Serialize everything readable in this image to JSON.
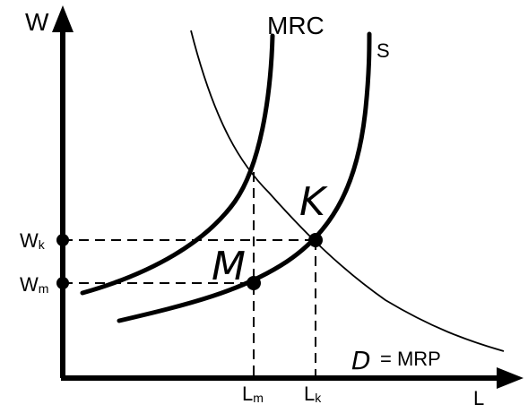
{
  "axes": {
    "y_label": "W",
    "x_label": "L"
  },
  "curves": {
    "mrc_label": "MRC",
    "supply_label": "S",
    "demand_label": "= MRP",
    "demand_symbol": "D"
  },
  "points": {
    "m_label": "M",
    "k_label": "K"
  },
  "ticks": {
    "wk": {
      "main": "W",
      "sub": "k"
    },
    "wm": {
      "main": "W",
      "sub": "m"
    },
    "lm": {
      "main": "L",
      "sub": "m"
    },
    "lk": {
      "main": "L",
      "sub": "k"
    }
  }
}
